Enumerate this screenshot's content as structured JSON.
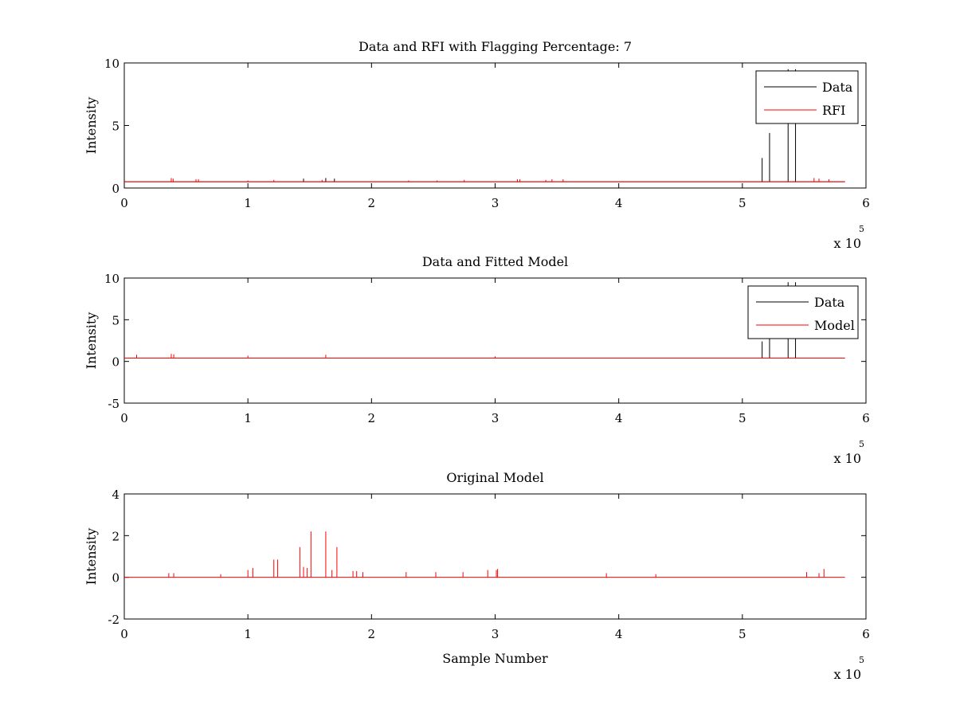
{
  "figure": {
    "background": "#ffffff",
    "line_colors": {
      "data": "#000000",
      "red": "#ff0000"
    }
  },
  "chart_data": [
    {
      "type": "line",
      "title": "Data and RFI with Flagging Percentage: 7",
      "xlabel": "",
      "ylabel": "Intensity",
      "xlim": [
        0,
        600000
      ],
      "ylim": [
        0,
        10
      ],
      "x_tick_labels": [
        "0",
        "1",
        "2",
        "3",
        "4",
        "5",
        "6"
      ],
      "y_tick_labels": [
        "0",
        "5",
        "10"
      ],
      "x_multiplier": {
        "base": "x 10",
        "exponent": "5"
      },
      "grid": false,
      "legend": {
        "placement": "top-right",
        "entries": [
          "Data",
          "RFI"
        ]
      },
      "series": [
        {
          "name": "Data",
          "color": "#000000",
          "baseline": 0.5,
          "spikes": [
            [
              516000,
              2.4
            ],
            [
              522000,
              4.4
            ],
            [
              537000,
              9.5
            ],
            [
              543000,
              9.5
            ],
            [
              145000,
              0.75
            ],
            [
              163000,
              0.8
            ],
            [
              170000,
              0.75
            ]
          ]
        },
        {
          "name": "RFI",
          "color": "#ff0000",
          "baseline": 0.5,
          "spikes": [
            [
              38000,
              0.8
            ],
            [
              39500,
              0.75
            ],
            [
              58000,
              0.7
            ],
            [
              60000,
              0.7
            ],
            [
              100000,
              0.6
            ],
            [
              121000,
              0.65
            ],
            [
              160000,
              0.65
            ],
            [
              230000,
              0.6
            ],
            [
              253000,
              0.6
            ],
            [
              275000,
              0.65
            ],
            [
              318000,
              0.7
            ],
            [
              320000,
              0.7
            ],
            [
              341000,
              0.65
            ],
            [
              346000,
              0.7
            ],
            [
              355000,
              0.7
            ],
            [
              558000,
              0.8
            ],
            [
              562000,
              0.75
            ],
            [
              570000,
              0.7
            ]
          ]
        }
      ]
    },
    {
      "type": "line",
      "title": "Data and Fitted Model",
      "xlabel": "",
      "ylabel": "Intensity",
      "xlim": [
        0,
        600000
      ],
      "ylim": [
        -5,
        10
      ],
      "x_tick_labels": [
        "0",
        "1",
        "2",
        "3",
        "4",
        "5",
        "6"
      ],
      "y_tick_labels": [
        "-5",
        "0",
        "5",
        "10"
      ],
      "x_multiplier": {
        "base": "x 10",
        "exponent": "5"
      },
      "grid": false,
      "legend": {
        "placement": "top-right",
        "entries": [
          "Data",
          "Model"
        ]
      },
      "series": [
        {
          "name": "Data",
          "color": "#000000",
          "baseline": 0.4,
          "spikes": [
            [
              516000,
              2.4
            ],
            [
              522000,
              4.4
            ],
            [
              537000,
              9.5
            ],
            [
              543000,
              9.5
            ]
          ]
        },
        {
          "name": "Model",
          "color": "#ff0000",
          "baseline": 0.4,
          "spikes": [
            [
              10000,
              0.8
            ],
            [
              38000,
              0.9
            ],
            [
              40000,
              0.85
            ],
            [
              163000,
              0.8
            ],
            [
              100000,
              0.7
            ],
            [
              300000,
              0.6
            ]
          ]
        }
      ]
    },
    {
      "type": "line",
      "title": "Original Model",
      "xlabel": "Sample Number",
      "ylabel": "Intensity",
      "xlim": [
        0,
        600000
      ],
      "ylim": [
        -2,
        4
      ],
      "x_tick_labels": [
        "0",
        "1",
        "2",
        "3",
        "4",
        "5",
        "6"
      ],
      "y_tick_labels": [
        "-2",
        "0",
        "2",
        "4"
      ],
      "x_multiplier": {
        "base": "x 10",
        "exponent": "5"
      },
      "grid": false,
      "legend": null,
      "series": [
        {
          "name": "",
          "color": "#ff0000",
          "baseline": 0,
          "spikes": [
            [
              36000,
              0.2
            ],
            [
              40000,
              0.2
            ],
            [
              78000,
              0.15
            ],
            [
              100000,
              0.35
            ],
            [
              104000,
              0.45
            ],
            [
              121000,
              0.85
            ],
            [
              124000,
              0.85
            ],
            [
              142000,
              1.45
            ],
            [
              145000,
              0.5
            ],
            [
              148000,
              0.45
            ],
            [
              151000,
              2.2
            ],
            [
              163000,
              2.2
            ],
            [
              168000,
              0.35
            ],
            [
              172000,
              1.45
            ],
            [
              185000,
              0.3
            ],
            [
              188000,
              0.3
            ],
            [
              193000,
              0.25
            ],
            [
              228000,
              0.25
            ],
            [
              252000,
              0.25
            ],
            [
              274000,
              0.25
            ],
            [
              294000,
              0.35
            ],
            [
              301000,
              0.35
            ],
            [
              302000,
              0.4
            ],
            [
              390000,
              0.2
            ],
            [
              430000,
              0.15
            ],
            [
              552000,
              0.25
            ],
            [
              562000,
              0.2
            ],
            [
              566000,
              0.4
            ]
          ]
        }
      ]
    }
  ]
}
